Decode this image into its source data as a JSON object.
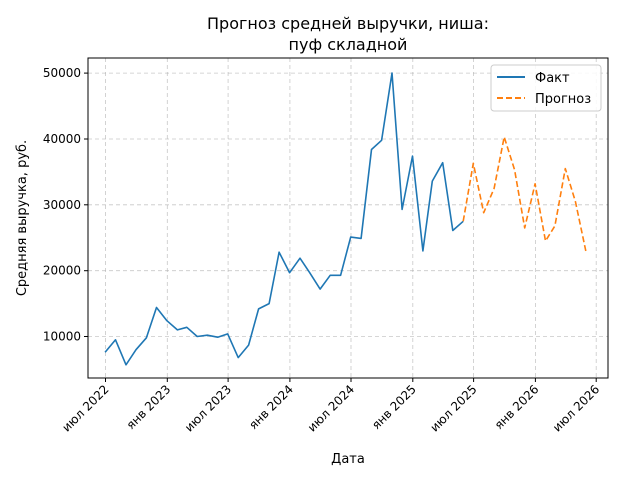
{
  "chart_data": {
    "type": "line",
    "title_line1": "Прогноз средней выручки, ниша:",
    "title_line2": "пуф складной",
    "xlabel": "Дата",
    "ylabel": "Средняя выручка, руб.",
    "ylim": [
      3700,
      52300
    ],
    "yticks": [
      10000,
      20000,
      30000,
      40000,
      50000
    ],
    "xlim": [
      "2022-05-10",
      "2026-08-05"
    ],
    "xticks": [
      {
        "date": "2022-07-01",
        "label": "июл 2022"
      },
      {
        "date": "2023-01-01",
        "label": "янв 2023"
      },
      {
        "date": "2023-07-01",
        "label": "июл 2023"
      },
      {
        "date": "2024-01-01",
        "label": "янв 2024"
      },
      {
        "date": "2024-07-01",
        "label": "июл 2024"
      },
      {
        "date": "2025-01-01",
        "label": "янв 2025"
      },
      {
        "date": "2025-07-01",
        "label": "июл 2025"
      },
      {
        "date": "2026-01-01",
        "label": "янв 2026"
      },
      {
        "date": "2026-07-01",
        "label": "июл 2026"
      }
    ],
    "grid": true,
    "legend_position": "top-right",
    "series": [
      {
        "name": "Факт",
        "color": "#1f77b4",
        "style": "solid",
        "points": [
          [
            "2022-06-30",
            7600
          ],
          [
            "2022-07-31",
            9500
          ],
          [
            "2022-08-31",
            5700
          ],
          [
            "2022-09-30",
            8000
          ],
          [
            "2022-10-31",
            9800
          ],
          [
            "2022-11-30",
            14400
          ],
          [
            "2022-12-31",
            12400
          ],
          [
            "2023-01-31",
            11000
          ],
          [
            "2023-02-28",
            11400
          ],
          [
            "2023-03-31",
            10000
          ],
          [
            "2023-04-30",
            10200
          ],
          [
            "2023-05-31",
            9900
          ],
          [
            "2023-06-30",
            10400
          ],
          [
            "2023-07-31",
            6800
          ],
          [
            "2023-08-31",
            8700
          ],
          [
            "2023-09-30",
            14200
          ],
          [
            "2023-10-31",
            15000
          ],
          [
            "2023-11-30",
            22800
          ],
          [
            "2023-12-31",
            19700
          ],
          [
            "2024-01-31",
            21900
          ],
          [
            "2024-02-29",
            19700
          ],
          [
            "2024-03-31",
            17200
          ],
          [
            "2024-04-30",
            19300
          ],
          [
            "2024-05-31",
            19300
          ],
          [
            "2024-06-30",
            25100
          ],
          [
            "2024-07-31",
            24900
          ],
          [
            "2024-08-31",
            38400
          ],
          [
            "2024-09-30",
            39800
          ],
          [
            "2024-10-31",
            50000
          ],
          [
            "2024-11-30",
            29300
          ],
          [
            "2024-12-31",
            37400
          ],
          [
            "2025-01-31",
            23000
          ],
          [
            "2025-02-28",
            33600
          ],
          [
            "2025-03-31",
            36400
          ],
          [
            "2025-04-30",
            26100
          ],
          [
            "2025-05-31",
            27500
          ]
        ]
      },
      {
        "name": "Прогноз",
        "color": "#ff7f0e",
        "style": "dashed",
        "points": [
          [
            "2025-05-31",
            27500
          ],
          [
            "2025-06-30",
            36300
          ],
          [
            "2025-07-31",
            28800
          ],
          [
            "2025-08-31",
            32500
          ],
          [
            "2025-09-30",
            40300
          ],
          [
            "2025-10-31",
            35300
          ],
          [
            "2025-11-30",
            26500
          ],
          [
            "2025-12-31",
            33200
          ],
          [
            "2026-01-31",
            24500
          ],
          [
            "2026-02-28",
            26800
          ],
          [
            "2026-03-31",
            35500
          ],
          [
            "2026-04-30",
            30500
          ],
          [
            "2026-05-31",
            23000
          ]
        ]
      }
    ]
  }
}
